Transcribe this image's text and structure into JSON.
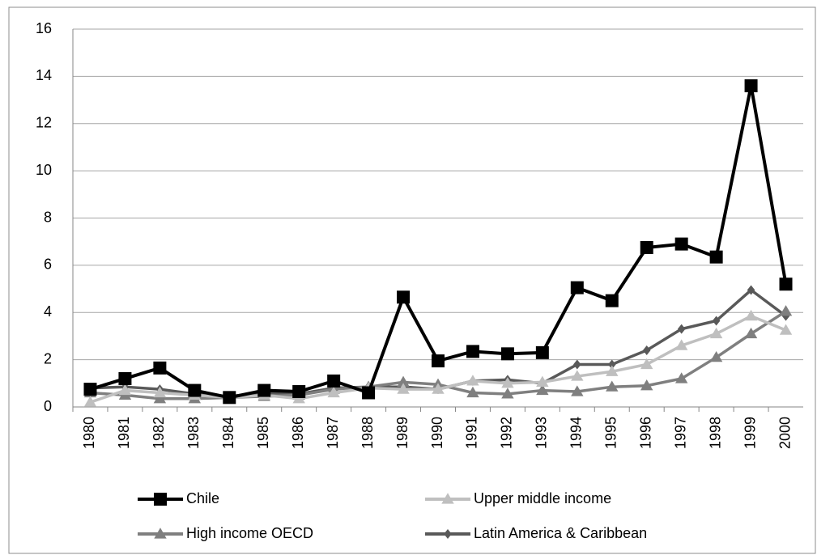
{
  "chart_data": {
    "type": "line",
    "categories": [
      "1980",
      "1981",
      "1982",
      "1983",
      "1984",
      "1985",
      "1986",
      "1987",
      "1988",
      "1989",
      "1990",
      "1991",
      "1992",
      "1993",
      "1994",
      "1995",
      "1996",
      "1997",
      "1998",
      "1999",
      "2000"
    ],
    "series": [
      {
        "name": "Chile",
        "color": "#000000",
        "marker": "square",
        "values": [
          0.75,
          1.2,
          1.65,
          0.7,
          0.4,
          0.7,
          0.65,
          1.1,
          0.6,
          4.65,
          1.95,
          2.35,
          2.25,
          2.3,
          5.05,
          4.5,
          6.75,
          6.9,
          6.35,
          13.6,
          5.2
        ]
      },
      {
        "name": "Upper middle income",
        "color": "#bfbfbf",
        "marker": "triangle",
        "values": [
          0.2,
          0.7,
          0.6,
          0.5,
          0.4,
          0.5,
          0.35,
          0.6,
          0.8,
          0.75,
          0.75,
          1.1,
          1.0,
          1.05,
          1.3,
          1.5,
          1.8,
          2.6,
          3.1,
          3.85,
          3.25
        ]
      },
      {
        "name": "High income OECD",
        "color": "#7f7f7f",
        "marker": "triangle",
        "values": [
          0.6,
          0.5,
          0.35,
          0.35,
          0.4,
          0.45,
          0.5,
          0.75,
          0.85,
          1.05,
          0.95,
          0.6,
          0.55,
          0.7,
          0.65,
          0.85,
          0.9,
          1.2,
          2.1,
          3.1,
          4.05
        ]
      },
      {
        "name": "Latin America & Caribbean",
        "color": "#595959",
        "marker": "diamond",
        "values": [
          0.8,
          0.85,
          0.75,
          0.55,
          0.45,
          0.6,
          0.55,
          0.8,
          0.85,
          0.85,
          0.75,
          1.1,
          1.15,
          1.0,
          1.8,
          1.8,
          2.4,
          3.3,
          3.65,
          4.95,
          3.85
        ]
      }
    ],
    "ylim": [
      0,
      16
    ],
    "yticks": [
      0,
      2,
      4,
      6,
      8,
      10,
      12,
      14,
      16
    ],
    "grid": true,
    "legend": "bottom"
  }
}
